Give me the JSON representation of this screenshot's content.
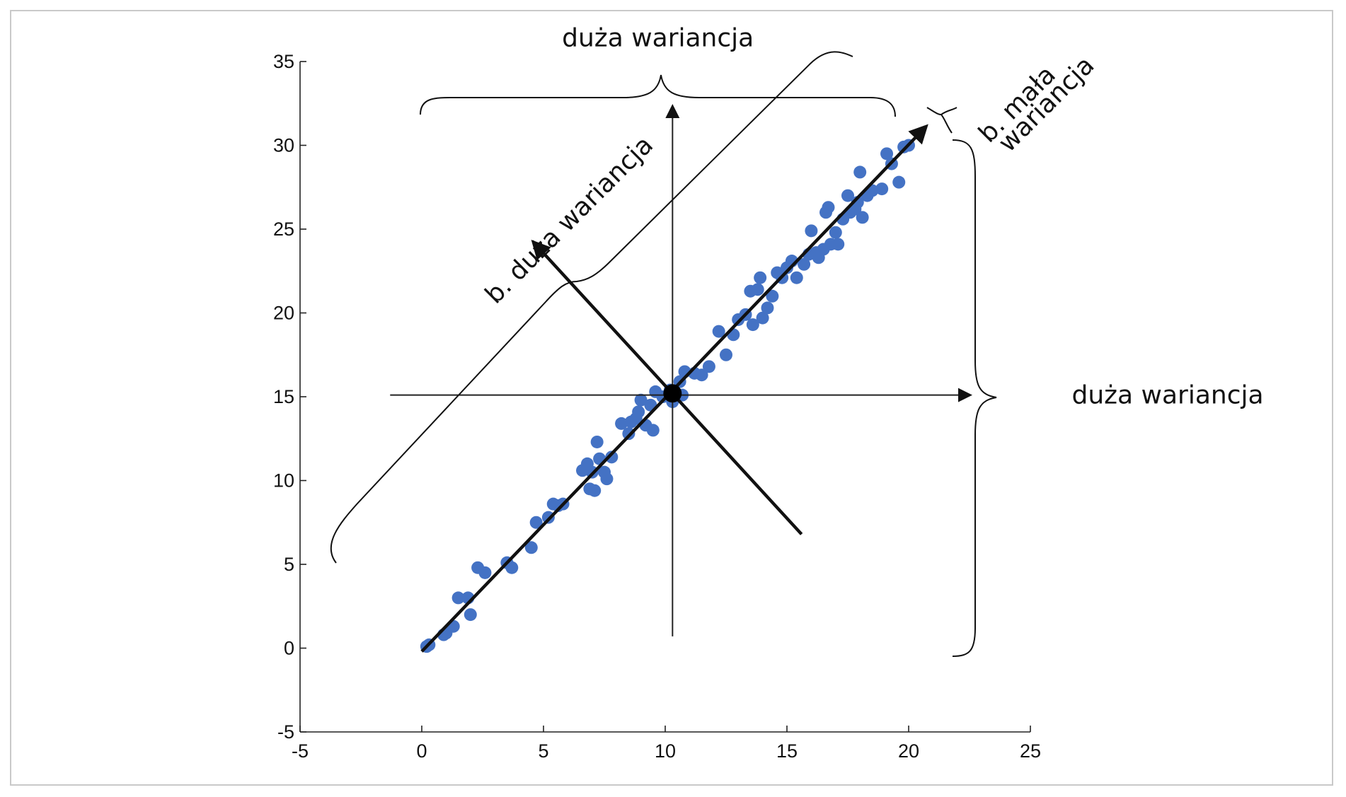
{
  "chart_data": {
    "type": "scatter",
    "title": "",
    "xlabel": "",
    "ylabel": "",
    "xlim": [
      -5,
      25
    ],
    "ylim": [
      -5,
      35
    ],
    "xticks": [
      -5,
      0,
      5,
      10,
      15,
      20,
      25
    ],
    "yticks": [
      -5,
      0,
      5,
      10,
      15,
      20,
      25,
      30,
      35
    ],
    "grid": false,
    "legend": "none",
    "point_color": "#4472c4",
    "mean_point": {
      "x": 10.3,
      "y": 15.2
    },
    "series": [
      {
        "name": "",
        "points": [
          [
            0.2,
            0.1
          ],
          [
            0.3,
            0.2
          ],
          [
            0.9,
            0.8
          ],
          [
            1.0,
            0.9
          ],
          [
            1.3,
            1.3
          ],
          [
            1.5,
            3.0
          ],
          [
            1.9,
            3.0
          ],
          [
            2.0,
            2.0
          ],
          [
            2.3,
            4.8
          ],
          [
            2.6,
            4.5
          ],
          [
            3.5,
            5.1
          ],
          [
            3.7,
            4.8
          ],
          [
            4.5,
            6.0
          ],
          [
            4.7,
            7.5
          ],
          [
            5.2,
            7.8
          ],
          [
            5.4,
            8.6
          ],
          [
            5.6,
            8.5
          ],
          [
            5.8,
            8.6
          ],
          [
            6.6,
            10.6
          ],
          [
            6.8,
            11.0
          ],
          [
            6.9,
            9.5
          ],
          [
            7.0,
            10.5
          ],
          [
            7.1,
            9.4
          ],
          [
            7.2,
            12.3
          ],
          [
            7.3,
            11.3
          ],
          [
            7.5,
            10.5
          ],
          [
            7.8,
            11.4
          ],
          [
            7.6,
            10.1
          ],
          [
            8.2,
            13.4
          ],
          [
            8.5,
            12.8
          ],
          [
            8.6,
            13.5
          ],
          [
            8.8,
            13.7
          ],
          [
            8.9,
            14.1
          ],
          [
            9.0,
            14.8
          ],
          [
            9.2,
            13.3
          ],
          [
            9.4,
            14.5
          ],
          [
            9.5,
            13.0
          ],
          [
            9.6,
            15.3
          ],
          [
            9.9,
            15.0
          ],
          [
            10.2,
            15.4
          ],
          [
            10.3,
            14.7
          ],
          [
            10.6,
            15.9
          ],
          [
            10.8,
            16.5
          ],
          [
            10.7,
            15.1
          ],
          [
            11.2,
            16.4
          ],
          [
            11.5,
            16.3
          ],
          [
            11.8,
            16.8
          ],
          [
            12.2,
            18.9
          ],
          [
            12.5,
            17.5
          ],
          [
            12.8,
            18.7
          ],
          [
            13.0,
            19.6
          ],
          [
            13.3,
            19.9
          ],
          [
            13.5,
            21.3
          ],
          [
            13.6,
            19.3
          ],
          [
            13.8,
            21.4
          ],
          [
            13.9,
            22.1
          ],
          [
            14.0,
            19.7
          ],
          [
            14.2,
            20.3
          ],
          [
            14.4,
            21.0
          ],
          [
            14.6,
            22.4
          ],
          [
            14.8,
            22.1
          ],
          [
            15.0,
            22.7
          ],
          [
            15.2,
            23.1
          ],
          [
            15.4,
            22.1
          ],
          [
            15.7,
            22.9
          ],
          [
            15.9,
            23.5
          ],
          [
            16.0,
            24.9
          ],
          [
            16.2,
            23.6
          ],
          [
            16.3,
            23.3
          ],
          [
            16.5,
            23.8
          ],
          [
            16.6,
            26.0
          ],
          [
            16.7,
            26.3
          ],
          [
            16.8,
            24.1
          ],
          [
            17.0,
            24.8
          ],
          [
            17.1,
            24.1
          ],
          [
            17.3,
            25.6
          ],
          [
            17.5,
            27.0
          ],
          [
            17.6,
            26.0
          ],
          [
            17.8,
            26.2
          ],
          [
            17.9,
            26.6
          ],
          [
            18.0,
            28.4
          ],
          [
            18.1,
            25.7
          ],
          [
            18.3,
            27.0
          ],
          [
            18.5,
            27.3
          ],
          [
            18.9,
            27.4
          ],
          [
            19.1,
            29.5
          ],
          [
            19.3,
            28.9
          ],
          [
            19.6,
            27.8
          ],
          [
            19.8,
            29.9
          ],
          [
            20.0,
            30.0
          ]
        ]
      }
    ],
    "axis_lines": [
      {
        "name": "vertical-axis-arrow",
        "from": [
          10.3,
          0.7
        ],
        "to": [
          10.3,
          32.3
        ],
        "arrow": true
      },
      {
        "name": "horizontal-axis-arrow",
        "from": [
          -1.3,
          15.1
        ],
        "to": [
          22.5,
          15.1
        ],
        "arrow": true
      },
      {
        "name": "main-component-arrow",
        "from": [
          0.0,
          -0.2
        ],
        "to": [
          20.7,
          31.1
        ],
        "arrow": true
      },
      {
        "name": "minor-component-arrow",
        "from": [
          15.6,
          6.8
        ],
        "to": [
          4.6,
          24.2
        ],
        "arrow": true
      }
    ],
    "annotations": [
      {
        "text": "duża wariancja",
        "x": 9.7,
        "y": 35.9,
        "rotation": 0
      },
      {
        "text": "duża wariancja",
        "x": 26.7,
        "y": 14.6,
        "rotation": 0
      },
      {
        "text": "b. duża wariancja",
        "x": 6.3,
        "y": 25.2,
        "rotation": -45
      },
      {
        "text": "b. mała",
        "x": 24.7,
        "y": 32.1,
        "rotation": -45
      },
      {
        "text": "wariancja",
        "x": 25.9,
        "y": 32.1,
        "rotation": -45
      }
    ]
  }
}
